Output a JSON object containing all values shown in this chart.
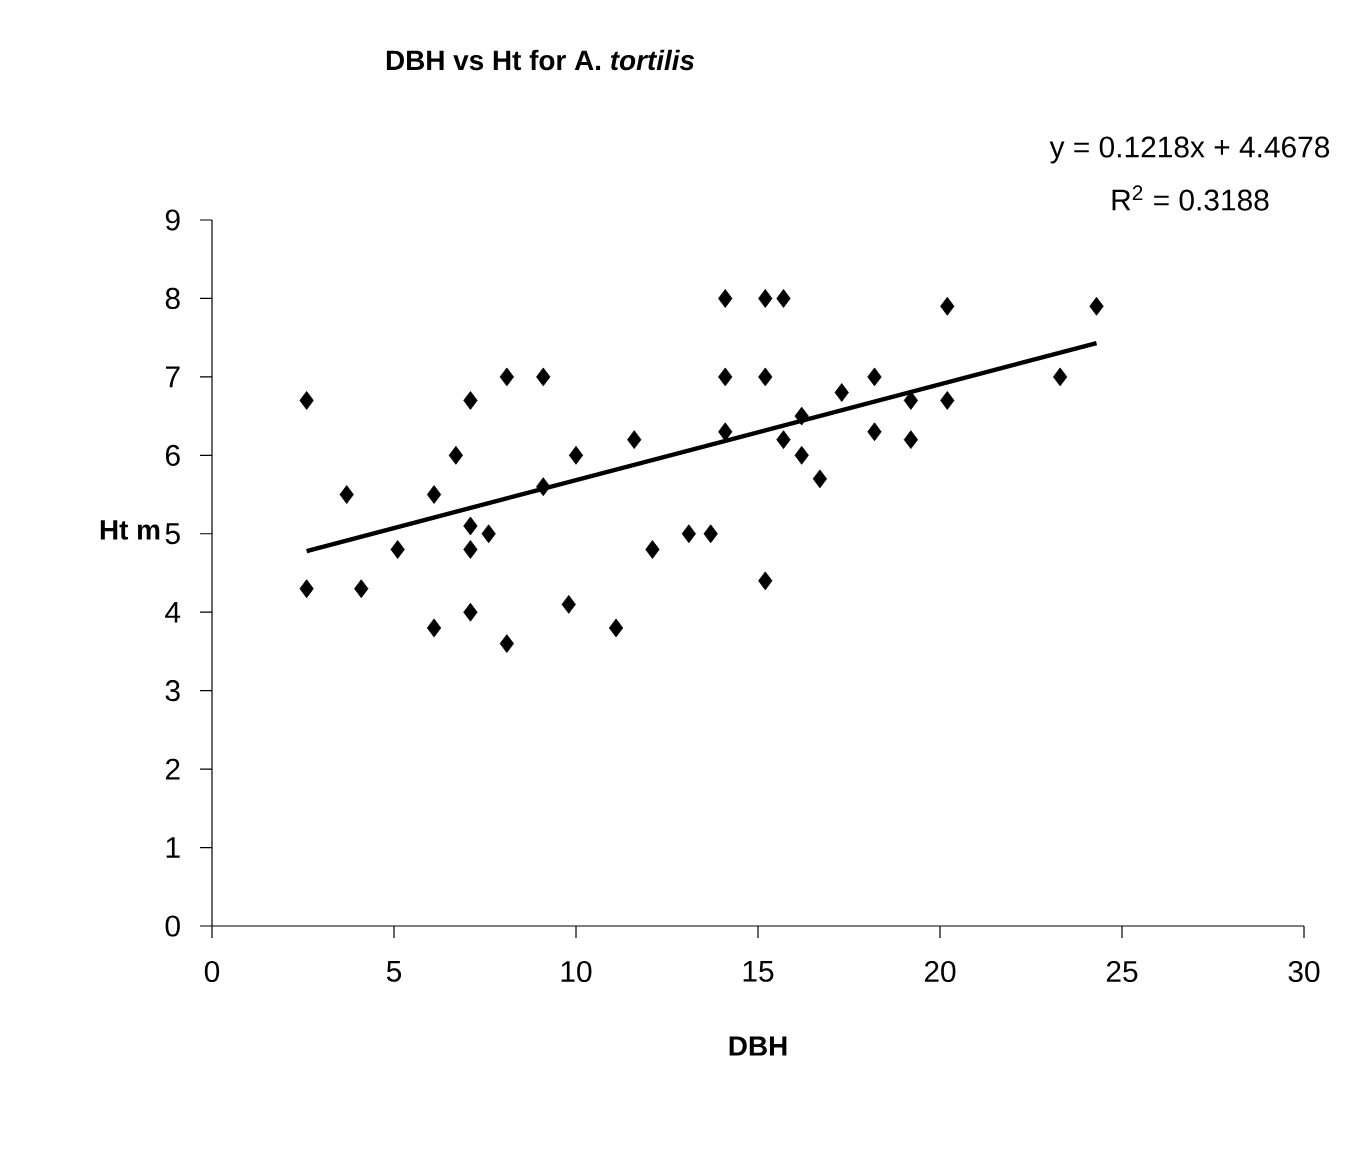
{
  "chart_data": {
    "type": "scatter",
    "title": "DBH vs Ht for A. *tortilis*",
    "xlabel": "DBH",
    "ylabel": "Ht m",
    "annotations": [
      "y = 0.1218x + 4.4678",
      "R$^{2}$ = 0.3188"
    ],
    "xlim": [
      0,
      30
    ],
    "ylim": [
      0,
      9
    ],
    "xticks": [
      0,
      5,
      10,
      15,
      20,
      25,
      30
    ],
    "yticks": [
      0,
      1,
      2,
      3,
      4,
      5,
      6,
      7,
      8,
      9
    ],
    "marker": "diamond",
    "series": [
      {
        "color": "#000000",
        "x": [
          2.6,
          2.6,
          3.7,
          4.1,
          5.1,
          6.1,
          6.1,
          6.7,
          7.1,
          7.1,
          7.1,
          7.1,
          7.6,
          8.1,
          8.1,
          9.1,
          9.1,
          9.8,
          10.0,
          11.1,
          11.6,
          12.1,
          13.1,
          13.7,
          14.1,
          14.1,
          14.1,
          15.2,
          15.2,
          15.2,
          15.7,
          15.7,
          16.2,
          16.2,
          16.7,
          17.3,
          18.2,
          18.2,
          19.2,
          19.2,
          20.2,
          20.2,
          23.3,
          24.3
        ],
        "values": [
          6.7,
          4.3,
          5.5,
          4.3,
          4.8,
          5.5,
          3.8,
          6.0,
          6.7,
          5.1,
          4.8,
          4.0,
          5.0,
          7.0,
          3.6,
          7.0,
          5.6,
          4.1,
          6.0,
          3.8,
          6.2,
          4.8,
          5.0,
          5.0,
          8.0,
          7.0,
          6.3,
          8.0,
          7.0,
          4.4,
          8.0,
          6.2,
          6.5,
          6.0,
          5.7,
          6.8,
          7.0,
          6.3,
          6.7,
          6.2,
          7.9,
          6.7,
          7.0,
          7.9
        ]
      },
      {
        "type": "line",
        "color": "#000000",
        "marker": "none",
        "x": [
          2.6,
          24.3
        ],
        "values": [
          4.78,
          7.43
        ]
      }
    ]
  }
}
